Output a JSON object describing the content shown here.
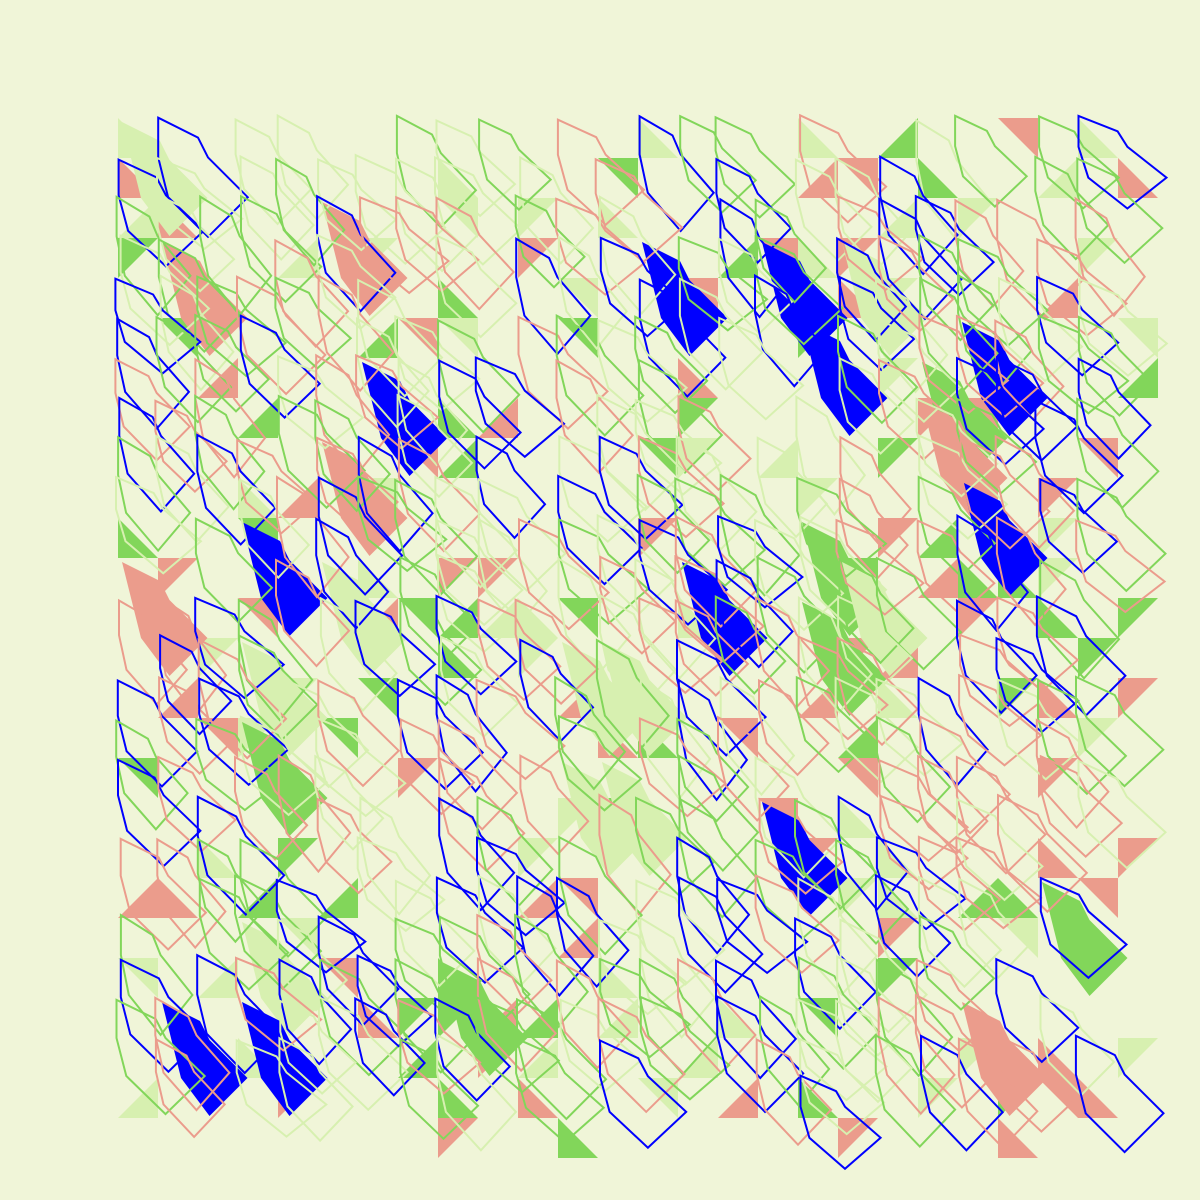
{
  "artwork": {
    "colors": {
      "background": "#f0f5d8",
      "blue": "#0000ff",
      "green": "#82d65a",
      "salmon": "#eb9c8c",
      "pale_green": "#d7f0b0"
    },
    "palette_order": [
      "blue",
      "green",
      "salmon",
      "pale_green"
    ],
    "grid": {
      "columns": 26,
      "rows": 26
    },
    "seed": 7,
    "shape_kinds": [
      "leaf-outline",
      "leaf-filled",
      "corner-triangle"
    ]
  }
}
